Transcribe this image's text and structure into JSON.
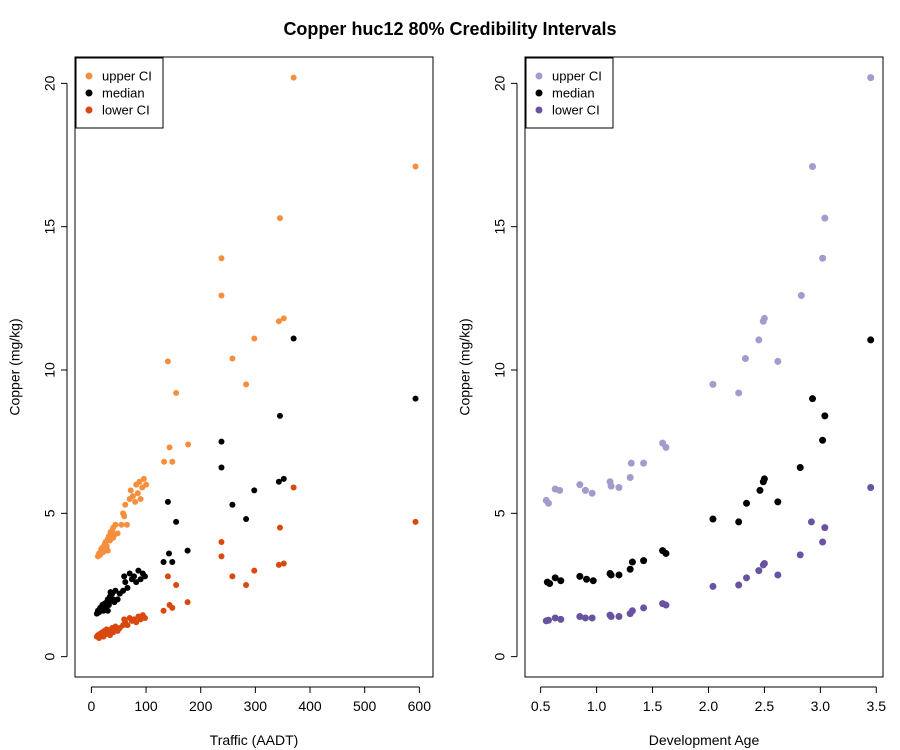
{
  "figure": {
    "title": "Copper huc12 80% Credibility Intervals"
  },
  "colors": {
    "orange_upper": "#F58F3D",
    "black_median": "#000000",
    "orange_lower": "#D9480F",
    "purple_upper": "#A39BCB",
    "purple_lower": "#6A52A3"
  },
  "chart_data": [
    {
      "type": "scatter",
      "xlabel": "Traffic (AADT)",
      "ylabel": "Copper (mg/kg)",
      "xlim": [
        0,
        600
      ],
      "ylim": [
        0,
        20
      ],
      "x_ticks": [
        "0",
        "100",
        "200",
        "300",
        "400",
        "500",
        "600"
      ],
      "y_ticks": [
        "0",
        "5",
        "10",
        "15",
        "20"
      ],
      "legend": {
        "position": "top-left",
        "entries": [
          "upper CI",
          "median",
          "lower CI"
        ]
      },
      "series": [
        {
          "name": "upper CI",
          "color": "#F58F3D",
          "points": [
            [
              12,
              3.5
            ],
            [
              14,
              3.6
            ],
            [
              16,
              3.55
            ],
            [
              18,
              3.7
            ],
            [
              20,
              3.8
            ],
            [
              22,
              3.65
            ],
            [
              24,
              3.9
            ],
            [
              26,
              4.0
            ],
            [
              28,
              3.85
            ],
            [
              30,
              4.1
            ],
            [
              32,
              4.2
            ],
            [
              34,
              4.05
            ],
            [
              36,
              4.3
            ],
            [
              38,
              4.4
            ],
            [
              40,
              4.5
            ],
            [
              42,
              4.25
            ],
            [
              44,
              4.6
            ],
            [
              18,
              3.75
            ],
            [
              25,
              3.95
            ],
            [
              30,
              3.7
            ],
            [
              35,
              4.35
            ],
            [
              40,
              4.15
            ],
            [
              48,
              4.3
            ],
            [
              55,
              4.6
            ],
            [
              58,
              5.0
            ],
            [
              60,
              4.9
            ],
            [
              62,
              5.3
            ],
            [
              65,
              4.6
            ],
            [
              70,
              5.5
            ],
            [
              72,
              5.8
            ],
            [
              76,
              5.6
            ],
            [
              80,
              5.4
            ],
            [
              82,
              6.0
            ],
            [
              85,
              5.7
            ],
            [
              88,
              6.1
            ],
            [
              90,
              5.5
            ],
            [
              93,
              5.9
            ],
            [
              96,
              6.2
            ],
            [
              100,
              6.0
            ],
            [
              133,
              6.8
            ],
            [
              140,
              10.3
            ],
            [
              143,
              7.3
            ],
            [
              148,
              6.8
            ],
            [
              155,
              9.2
            ],
            [
              177,
              7.4
            ],
            [
              238,
              13.9
            ],
            [
              238,
              12.6
            ],
            [
              258,
              10.4
            ],
            [
              283,
              9.5
            ],
            [
              298,
              11.1
            ],
            [
              343,
              11.7
            ],
            [
              345,
              15.3
            ],
            [
              352,
              11.8
            ],
            [
              370,
              20.2
            ],
            [
              593,
              17.1
            ]
          ]
        },
        {
          "name": "median",
          "color": "#000000",
          "points": [
            [
              10,
              1.5
            ],
            [
              12,
              1.6
            ],
            [
              14,
              1.55
            ],
            [
              16,
              1.7
            ],
            [
              18,
              1.65
            ],
            [
              20,
              1.8
            ],
            [
              22,
              1.6
            ],
            [
              24,
              1.85
            ],
            [
              26,
              1.75
            ],
            [
              28,
              1.9
            ],
            [
              30,
              2.0
            ],
            [
              32,
              1.8
            ],
            [
              34,
              2.1
            ],
            [
              36,
              1.95
            ],
            [
              38,
              2.2
            ],
            [
              40,
              2.0
            ],
            [
              42,
              1.9
            ],
            [
              44,
              2.3
            ],
            [
              20,
              1.7
            ],
            [
              30,
              1.6
            ],
            [
              35,
              2.25
            ],
            [
              48,
              2.0
            ],
            [
              52,
              2.2
            ],
            [
              58,
              2.3
            ],
            [
              60,
              2.8
            ],
            [
              62,
              2.6
            ],
            [
              66,
              2.4
            ],
            [
              70,
              2.9
            ],
            [
              74,
              2.7
            ],
            [
              78,
              2.8
            ],
            [
              82,
              2.6
            ],
            [
              86,
              3.0
            ],
            [
              90,
              2.7
            ],
            [
              94,
              2.9
            ],
            [
              98,
              2.8
            ],
            [
              132,
              3.3
            ],
            [
              140,
              5.4
            ],
            [
              142,
              3.6
            ],
            [
              148,
              3.3
            ],
            [
              155,
              4.7
            ],
            [
              176,
              3.7
            ],
            [
              238,
              7.5
            ],
            [
              238,
              6.6
            ],
            [
              258,
              5.3
            ],
            [
              283,
              4.8
            ],
            [
              298,
              5.8
            ],
            [
              343,
              6.1
            ],
            [
              345,
              8.4
            ],
            [
              352,
              6.2
            ],
            [
              370,
              11.1
            ],
            [
              593,
              9.0
            ]
          ]
        },
        {
          "name": "lower CI",
          "color": "#D9480F",
          "points": [
            [
              10,
              0.7
            ],
            [
              12,
              0.75
            ],
            [
              14,
              0.65
            ],
            [
              16,
              0.8
            ],
            [
              18,
              0.72
            ],
            [
              20,
              0.85
            ],
            [
              22,
              0.7
            ],
            [
              24,
              0.9
            ],
            [
              26,
              0.78
            ],
            [
              28,
              0.95
            ],
            [
              30,
              0.8
            ],
            [
              32,
              0.88
            ],
            [
              34,
              0.75
            ],
            [
              36,
              0.92
            ],
            [
              38,
              1.0
            ],
            [
              40,
              0.85
            ],
            [
              42,
              0.95
            ],
            [
              44,
              1.05
            ],
            [
              48,
              0.9
            ],
            [
              52,
              1.0
            ],
            [
              58,
              1.1
            ],
            [
              60,
              1.3
            ],
            [
              62,
              1.2
            ],
            [
              66,
              1.1
            ],
            [
              70,
              1.35
            ],
            [
              74,
              1.25
            ],
            [
              78,
              1.3
            ],
            [
              82,
              1.2
            ],
            [
              86,
              1.4
            ],
            [
              90,
              1.3
            ],
            [
              94,
              1.45
            ],
            [
              98,
              1.35
            ],
            [
              132,
              1.6
            ],
            [
              140,
              2.8
            ],
            [
              143,
              1.8
            ],
            [
              148,
              1.7
            ],
            [
              155,
              2.5
            ],
            [
              176,
              1.9
            ],
            [
              238,
              4.0
            ],
            [
              238,
              3.5
            ],
            [
              258,
              2.8
            ],
            [
              283,
              2.5
            ],
            [
              298,
              3.0
            ],
            [
              343,
              3.2
            ],
            [
              345,
              4.5
            ],
            [
              352,
              3.25
            ],
            [
              370,
              5.9
            ],
            [
              593,
              4.7
            ]
          ]
        }
      ]
    },
    {
      "type": "scatter",
      "xlabel": "Development Age",
      "ylabel": "Copper (mg/kg)",
      "xlim": [
        0.5,
        3.5
      ],
      "ylim": [
        0,
        20
      ],
      "x_ticks": [
        "0.5",
        "1.0",
        "1.5",
        "2.0",
        "2.5",
        "3.0",
        "3.5"
      ],
      "y_ticks": [
        "0",
        "5",
        "10",
        "15",
        "20"
      ],
      "legend": {
        "position": "top-left",
        "entries": [
          "upper CI",
          "median",
          "lower CI"
        ]
      },
      "series": [
        {
          "name": "upper CI",
          "color": "#A39BCB",
          "points": [
            [
              0.55,
              5.45
            ],
            [
              0.57,
              5.35
            ],
            [
              0.63,
              5.85
            ],
            [
              0.67,
              5.8
            ],
            [
              0.85,
              6.0
            ],
            [
              0.9,
              5.8
            ],
            [
              0.96,
              5.7
            ],
            [
              1.12,
              6.1
            ],
            [
              1.13,
              5.95
            ],
            [
              1.2,
              5.9
            ],
            [
              1.3,
              6.25
            ],
            [
              1.31,
              6.75
            ],
            [
              1.42,
              6.75
            ],
            [
              1.59,
              7.45
            ],
            [
              1.62,
              7.3
            ],
            [
              2.04,
              9.5
            ],
            [
              2.27,
              9.2
            ],
            [
              2.33,
              10.4
            ],
            [
              2.45,
              11.05
            ],
            [
              2.49,
              11.7
            ],
            [
              2.5,
              11.8
            ],
            [
              2.62,
              10.3
            ],
            [
              2.83,
              12.6
            ],
            [
              2.93,
              17.1
            ],
            [
              3.02,
              13.9
            ],
            [
              3.04,
              15.3
            ],
            [
              3.45,
              20.2
            ]
          ]
        },
        {
          "name": "median",
          "color": "#000000",
          "points": [
            [
              0.56,
              2.6
            ],
            [
              0.58,
              2.55
            ],
            [
              0.63,
              2.75
            ],
            [
              0.68,
              2.65
            ],
            [
              0.85,
              2.8
            ],
            [
              0.91,
              2.7
            ],
            [
              0.97,
              2.65
            ],
            [
              1.12,
              2.9
            ],
            [
              1.13,
              2.85
            ],
            [
              1.2,
              2.85
            ],
            [
              1.3,
              3.05
            ],
            [
              1.32,
              3.3
            ],
            [
              1.42,
              3.35
            ],
            [
              1.59,
              3.7
            ],
            [
              1.62,
              3.6
            ],
            [
              2.04,
              4.8
            ],
            [
              2.27,
              4.7
            ],
            [
              2.34,
              5.35
            ],
            [
              2.46,
              5.8
            ],
            [
              2.49,
              6.1
            ],
            [
              2.5,
              6.2
            ],
            [
              2.62,
              5.4
            ],
            [
              2.82,
              6.6
            ],
            [
              2.93,
              9.0
            ],
            [
              3.02,
              7.55
            ],
            [
              3.04,
              8.4
            ],
            [
              3.45,
              11.05
            ]
          ]
        },
        {
          "name": "lower CI",
          "color": "#6A52A3",
          "points": [
            [
              0.55,
              1.25
            ],
            [
              0.57,
              1.27
            ],
            [
              0.63,
              1.35
            ],
            [
              0.68,
              1.3
            ],
            [
              0.85,
              1.4
            ],
            [
              0.9,
              1.35
            ],
            [
              0.96,
              1.35
            ],
            [
              1.12,
              1.45
            ],
            [
              1.13,
              1.4
            ],
            [
              1.2,
              1.4
            ],
            [
              1.3,
              1.5
            ],
            [
              1.32,
              1.6
            ],
            [
              1.42,
              1.7
            ],
            [
              1.59,
              1.85
            ],
            [
              1.62,
              1.8
            ],
            [
              2.04,
              2.45
            ],
            [
              2.27,
              2.5
            ],
            [
              2.34,
              2.75
            ],
            [
              2.45,
              3.0
            ],
            [
              2.49,
              3.2
            ],
            [
              2.5,
              3.25
            ],
            [
              2.62,
              2.85
            ],
            [
              2.82,
              3.55
            ],
            [
              2.92,
              4.7
            ],
            [
              3.02,
              4.0
            ],
            [
              3.04,
              4.5
            ],
            [
              3.45,
              5.9
            ]
          ]
        }
      ]
    }
  ]
}
